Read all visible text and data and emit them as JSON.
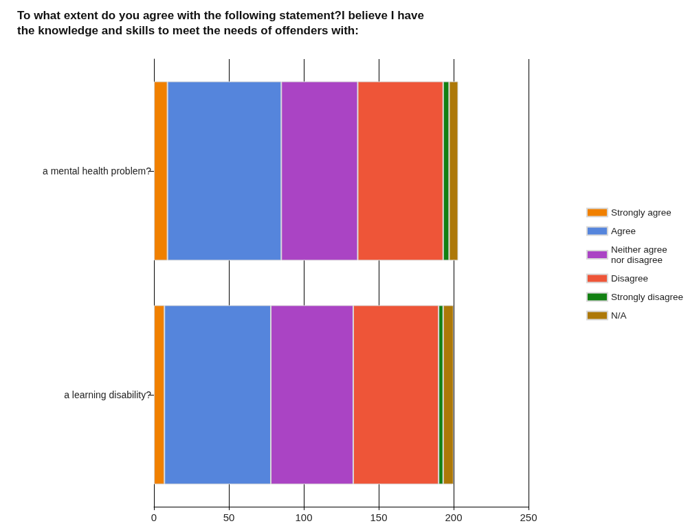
{
  "chart_data": {
    "type": "bar",
    "orientation": "horizontal",
    "stacked": true,
    "title": "To what extent do you agree with the following statement?I believe I have\nthe knowledge and skills to meet the needs of offenders with:",
    "categories": [
      "a mental health problem?",
      "a learning disability?"
    ],
    "series": [
      {
        "name": "Strongly agree",
        "color": "#f08000",
        "values": [
          9,
          7
        ]
      },
      {
        "name": "Agree",
        "color": "#5585dc",
        "values": [
          76,
          71
        ]
      },
      {
        "name": "Neither agree\nnor disagree",
        "color": "#aa44c4",
        "values": [
          51,
          55
        ]
      },
      {
        "name": "Disagree",
        "color": "#ee5538",
        "values": [
          57,
          57
        ]
      },
      {
        "name": "Strongly disagree",
        "color": "#128012",
        "values": [
          4,
          3
        ]
      },
      {
        "name": "N/A",
        "color": "#ad7808",
        "values": [
          6,
          7
        ]
      }
    ],
    "xlim": [
      0,
      250
    ],
    "xticks": [
      0,
      50,
      100,
      150,
      200,
      250
    ],
    "grid": "x",
    "legend": "right"
  }
}
